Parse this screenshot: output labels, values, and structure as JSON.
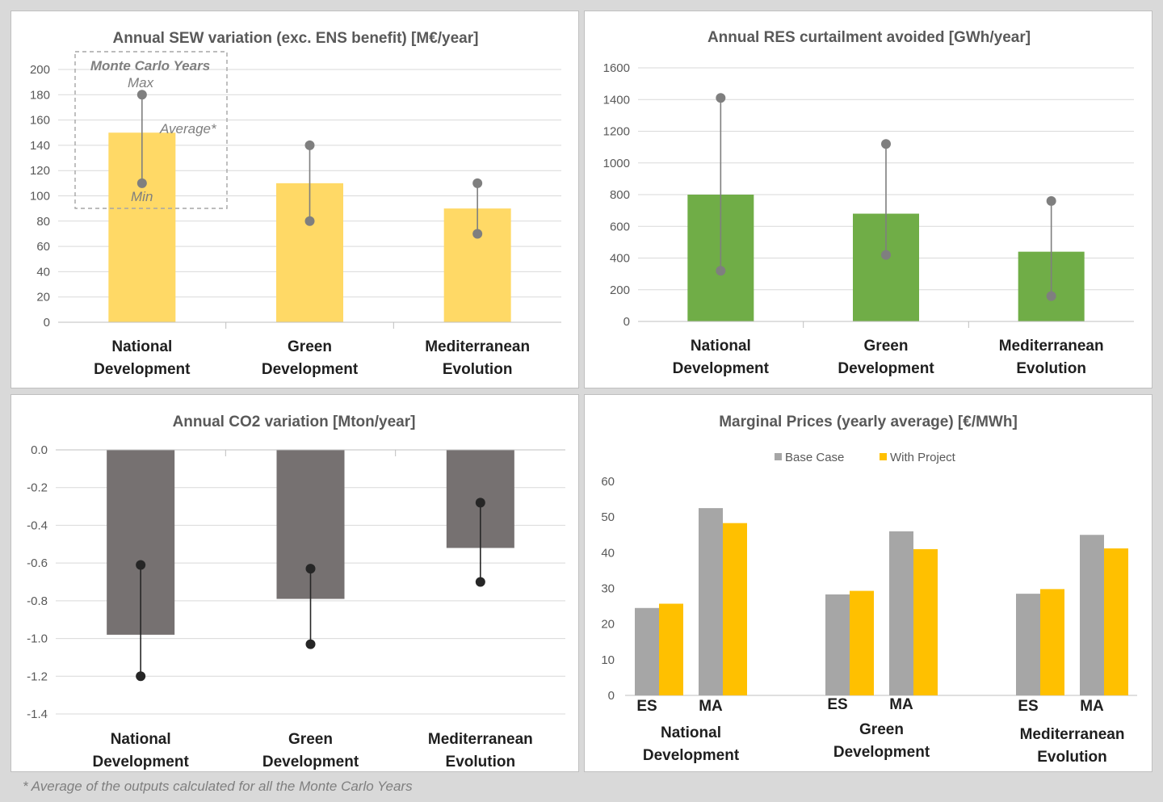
{
  "footnote": "* Average of the outputs calculated for all the Monte Carlo Years",
  "colors": {
    "yellow_bar": "#ffd966",
    "green_bar": "#70ad47",
    "dark_bar": "#767171",
    "marker_grey": "#7f7f7f",
    "marker_dark": "#262626",
    "base_case": "#a6a6a6",
    "with_project": "#ffc000",
    "grid": "#d9d9d9"
  },
  "chart_data": [
    {
      "id": "sew",
      "type": "bar",
      "title": "Annual SEW variation (exc. ENS benefit) [M€/year]",
      "categories": [
        [
          "National",
          "Development"
        ],
        [
          "Green",
          "Development"
        ],
        [
          "Mediterranean",
          "Evolution"
        ]
      ],
      "values": [
        150,
        110,
        90
      ],
      "max": [
        180,
        140,
        110
      ],
      "min": [
        110,
        80,
        70
      ],
      "ylim": [
        0,
        200
      ],
      "yticks": [
        "200",
        "180",
        "160",
        "140",
        "120",
        "100",
        "80",
        "60",
        "40",
        "20",
        "0"
      ],
      "yticks_values": [
        200,
        180,
        160,
        140,
        120,
        100,
        80,
        60,
        40,
        20,
        0
      ],
      "grid": true,
      "annotations": {
        "box_title": "Monte Carlo Years",
        "max_label": "Max",
        "average_label": "Average*",
        "min_label": "Min"
      }
    },
    {
      "id": "res",
      "type": "bar",
      "title": "Annual RES curtailment avoided [GWh/year]",
      "categories": [
        [
          "National",
          "Development"
        ],
        [
          "Green",
          "Development"
        ],
        [
          "Mediterranean",
          "Evolution"
        ]
      ],
      "values": [
        800,
        680,
        440
      ],
      "max": [
        1410,
        1120,
        760
      ],
      "min": [
        320,
        420,
        160
      ],
      "ylim": [
        0,
        1600
      ],
      "yticks": [
        "1600",
        "1400",
        "1200",
        "1000",
        "800",
        "600",
        "400",
        "200",
        "0"
      ],
      "yticks_values": [
        1600,
        1400,
        1200,
        1000,
        800,
        600,
        400,
        200,
        0
      ],
      "grid": true
    },
    {
      "id": "co2",
      "type": "bar",
      "title": "Annual CO2 variation [Mton/year]",
      "categories": [
        [
          "National",
          "Development"
        ],
        [
          "Green",
          "Development"
        ],
        [
          "Mediterranean",
          "Evolution"
        ]
      ],
      "values": [
        -0.98,
        -0.79,
        -0.52
      ],
      "max": [
        -0.61,
        -0.63,
        -0.28
      ],
      "min": [
        -1.2,
        -1.03,
        -0.7
      ],
      "ylim": [
        -1.4,
        0
      ],
      "yticks": [
        "0.0",
        "-0.2",
        "-0.4",
        "-0.6",
        "-0.8",
        "-1.0",
        "-1.2",
        "-1.4"
      ],
      "yticks_values": [
        0,
        -0.2,
        -0.4,
        -0.6,
        -0.8,
        -1.0,
        -1.2,
        -1.4
      ],
      "grid": true
    },
    {
      "id": "mp",
      "type": "bar",
      "title": "Marginal Prices (yearly average) [€/MWh]",
      "legend": [
        "Base Case",
        "With Project"
      ],
      "legend_position": "top",
      "groups": [
        {
          "label": [
            "National",
            "Development"
          ],
          "countries": [
            "ES",
            "MA"
          ],
          "base": [
            24.5,
            52.5
          ],
          "project": [
            25.7,
            48.3
          ]
        },
        {
          "label": [
            "Green",
            "Development"
          ],
          "countries": [
            "ES",
            "MA"
          ],
          "base": [
            28.3,
            46
          ],
          "project": [
            29.3,
            41
          ]
        },
        {
          "label": [
            "Mediterranean",
            "Evolution"
          ],
          "countries": [
            "ES",
            "MA"
          ],
          "base": [
            28.5,
            45
          ],
          "project": [
            29.8,
            41.2
          ]
        }
      ],
      "ylim": [
        0,
        60
      ],
      "yticks": [
        "60",
        "50",
        "40",
        "30",
        "20",
        "10",
        "0"
      ],
      "yticks_values": [
        60,
        50,
        40,
        30,
        20,
        10,
        0
      ],
      "grid": false
    }
  ]
}
